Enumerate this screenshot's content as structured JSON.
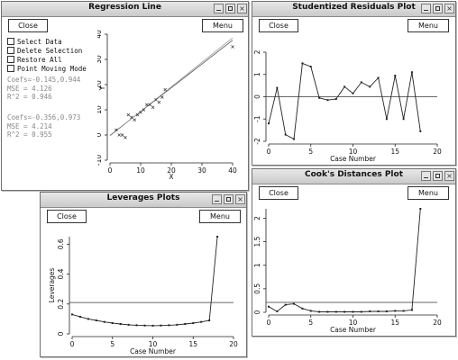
{
  "windows": {
    "regression": {
      "title": "Regression Line",
      "close_label": "Close",
      "menu_label": "Menu",
      "options": [
        "Select Data",
        "Delete Selection",
        "Restore All",
        "Point Moving Mode"
      ],
      "fit1": [
        "Coefs=-0.145,0.944",
        "MSE = 4.126",
        "R^2 = 0.946"
      ],
      "fit2": [
        "Coefs=-0.356,0.973",
        "MSE = 4.214",
        "R^2 = 0.955"
      ],
      "chart_data": {
        "type": "scatter",
        "xlabel": "X",
        "ylabel": "Y",
        "xlim": [
          0,
          40
        ],
        "ylim": [
          -10,
          40
        ],
        "xticks": [
          "0",
          "10",
          "20",
          "30",
          "40"
        ],
        "yticks": [
          "-10",
          "0",
          "10",
          "20",
          "30",
          "40"
        ],
        "points": [
          [
            2,
            2
          ],
          [
            3,
            0
          ],
          [
            4,
            0
          ],
          [
            5,
            -1
          ],
          [
            6,
            8
          ],
          [
            7,
            7
          ],
          [
            8,
            6
          ],
          [
            9,
            8
          ],
          [
            10,
            9
          ],
          [
            11,
            10
          ],
          [
            12,
            12
          ],
          [
            13,
            12
          ],
          [
            14,
            11
          ],
          [
            15,
            14
          ],
          [
            16,
            13
          ],
          [
            17,
            15
          ],
          [
            18,
            18
          ],
          [
            40,
            35
          ]
        ],
        "lines": [
          [
            -0.145,
            0.944
          ],
          [
            -0.356,
            0.973
          ]
        ]
      }
    },
    "studentized": {
      "title": "Studentized Residuals Plot",
      "close_label": "Close",
      "menu_label": "Menu",
      "chart_data": {
        "type": "line",
        "xlabel": "Case Number",
        "ylabel": "Residuals",
        "xlim": [
          0,
          20
        ],
        "ylim": [
          -2,
          2
        ],
        "xticks": [
          "0",
          "5",
          "10",
          "15",
          "20"
        ],
        "yticks": [
          "-2",
          "-1",
          "0",
          "1",
          "2"
        ],
        "reference": 0,
        "x": [
          0,
          1,
          2,
          3,
          4,
          5,
          6,
          7,
          8,
          9,
          10,
          11,
          12,
          13,
          14,
          15,
          16,
          17,
          18
        ],
        "values": [
          -1.2,
          0.4,
          -1.7,
          -1.9,
          1.5,
          1.35,
          -0.05,
          -0.15,
          -0.1,
          0.45,
          0.15,
          0.65,
          0.45,
          0.85,
          -1.0,
          0.95,
          -1.0,
          1.1,
          -1.55
        ]
      }
    },
    "cooks": {
      "title": "Cook's Distances Plot",
      "close_label": "Close",
      "menu_label": "Menu",
      "chart_data": {
        "type": "line",
        "xlabel": "Case Number",
        "ylabel": "Cook's D",
        "xlim": [
          0,
          20
        ],
        "ylim": [
          0,
          2.2
        ],
        "xticks": [
          "0",
          "5",
          "10",
          "15",
          "20"
        ],
        "yticks": [
          "0",
          "0.5",
          "1",
          "1.5",
          "2"
        ],
        "reference": 0.21,
        "x": [
          0,
          1,
          2,
          3,
          4,
          5,
          6,
          7,
          8,
          9,
          10,
          11,
          12,
          13,
          14,
          15,
          16,
          17,
          18
        ],
        "values": [
          0.12,
          0.02,
          0.16,
          0.18,
          0.08,
          0.03,
          0.01,
          0.01,
          0.01,
          0.01,
          0.01,
          0.01,
          0.02,
          0.02,
          0.02,
          0.03,
          0.03,
          0.05,
          2.2
        ]
      }
    },
    "leverages": {
      "title": "Leverages Plots",
      "close_label": "Close",
      "menu_label": "Menu",
      "chart_data": {
        "type": "line",
        "xlabel": "Case Number",
        "ylabel": "Leverages",
        "xlim": [
          0,
          20
        ],
        "ylim": [
          0,
          0.65
        ],
        "xticks": [
          "0",
          "5",
          "10",
          "15",
          "20"
        ],
        "yticks": [
          "0",
          "0.2",
          "0.4",
          "0.6"
        ],
        "reference": 0.21,
        "x": [
          0,
          1,
          2,
          3,
          4,
          5,
          6,
          7,
          8,
          9,
          10,
          11,
          12,
          13,
          14,
          15,
          16,
          17,
          18
        ],
        "values": [
          0.13,
          0.115,
          0.1,
          0.09,
          0.08,
          0.072,
          0.066,
          0.061,
          0.058,
          0.056,
          0.055,
          0.056,
          0.058,
          0.061,
          0.066,
          0.072,
          0.08,
          0.09,
          0.65
        ]
      }
    }
  },
  "colors": {
    "titlebar": "#d0d0d0",
    "line": "#222222",
    "reference": "#333333"
  }
}
